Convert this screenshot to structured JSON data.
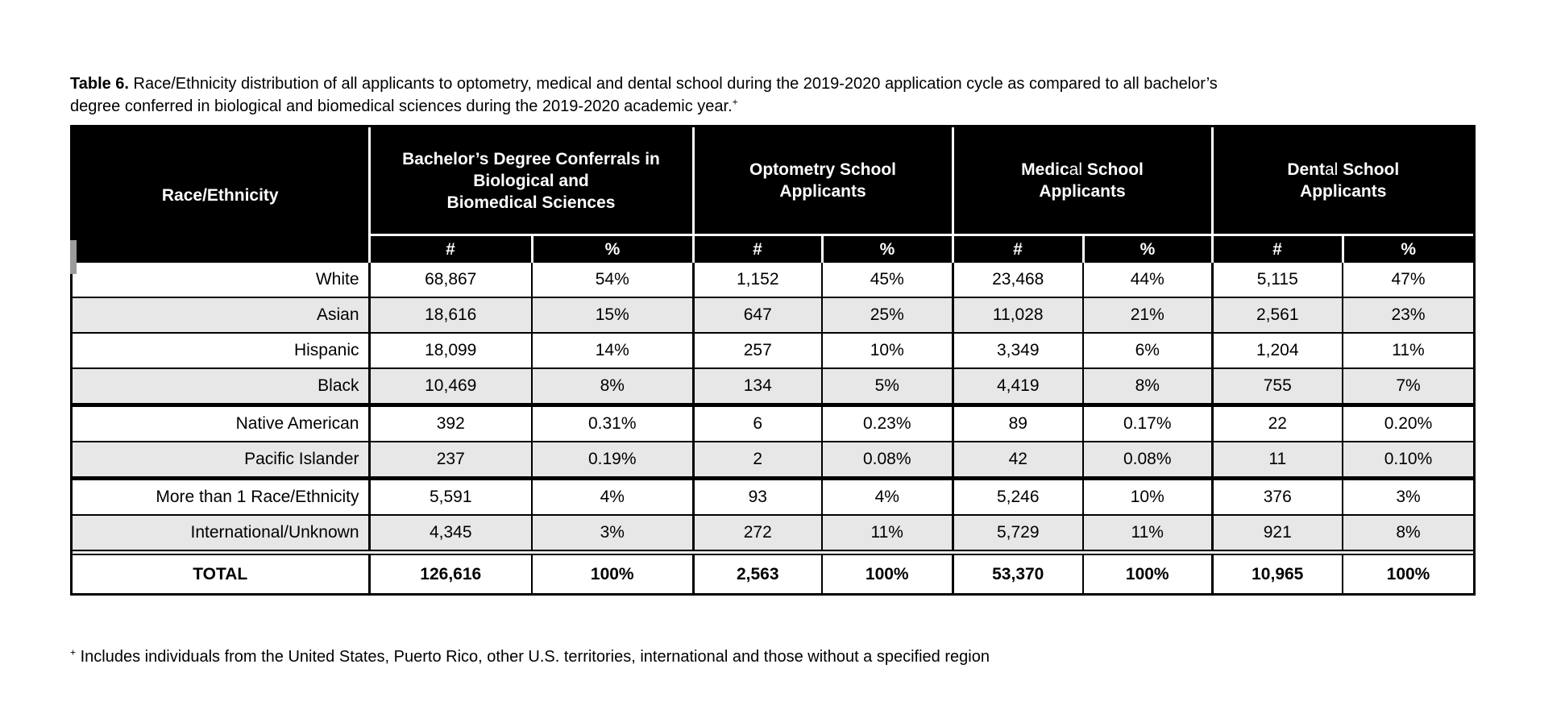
{
  "colors": {
    "header_bg": "#000000",
    "header_text": "#ffffff",
    "row_alt_bg": "#e7e7e7",
    "body_text": "#000000"
  },
  "title": {
    "label_bold": "Table 6.",
    "text": " Race/Ethnicity distribution of all applicants to optometry, medical and dental school during the 2019-2020 application cycle as compared to all bachelor’s degree conferred in biological and biomedical sciences during the 2019-2020 academic year.",
    "superscript": "+"
  },
  "table": {
    "corner_header": "Race/Ethnicity",
    "groups": [
      {
        "line1": "Bachelor’s Degree Conferrals in",
        "line2": "Biological and",
        "line3": "Biomedical Sciences"
      },
      {
        "line1": "Optometry School",
        "line2": "Applicants"
      },
      {
        "seg_bold1": "Medic",
        "seg_regular": "al",
        "seg_bold2": " School",
        "line2": "Applicants"
      },
      {
        "seg_bold1": "Dent",
        "seg_regular": "al",
        "seg_bold2": " School",
        "line2": "Applicants"
      }
    ],
    "subheaders": [
      "#",
      "%"
    ],
    "rows": [
      {
        "label": "White",
        "values": [
          "68,867",
          "54%",
          "1,152",
          "45%",
          "23,468",
          "44%",
          "5,115",
          "47%"
        ]
      },
      {
        "label": "Asian",
        "values": [
          "18,616",
          "15%",
          "647",
          "25%",
          "11,028",
          "21%",
          "2,561",
          "23%"
        ]
      },
      {
        "label": "Hispanic",
        "values": [
          "18,099",
          "14%",
          "257",
          "10%",
          "3,349",
          "6%",
          "1,204",
          "11%"
        ]
      },
      {
        "label": "Black",
        "values": [
          "10,469",
          "8%",
          "134",
          "5%",
          "4,419",
          "8%",
          "755",
          "7%"
        ]
      },
      {
        "label": "Native American",
        "values": [
          "392",
          "0.31%",
          "6",
          "0.23%",
          "89",
          "0.17%",
          "22",
          "0.20%"
        ]
      },
      {
        "label": "Pacific Islander",
        "values": [
          "237",
          "0.19%",
          "2",
          "0.08%",
          "42",
          "0.08%",
          "11",
          "0.10%"
        ]
      },
      {
        "label": "More than 1 Race/Ethnicity",
        "values": [
          "5,591",
          "4%",
          "93",
          "4%",
          "5,246",
          "10%",
          "376",
          "3%"
        ]
      },
      {
        "label": "International/Unknown",
        "values": [
          "4,345",
          "3%",
          "272",
          "11%",
          "5,729",
          "11%",
          "921",
          "8%"
        ]
      }
    ],
    "total_row": {
      "label": "TOTAL",
      "values": [
        "126,616",
        "100%",
        "2,563",
        "100%",
        "53,370",
        "100%",
        "10,965",
        "100%"
      ]
    }
  },
  "footnote": {
    "superscript": "+",
    "text": " Includes individuals from the United States, Puerto Rico, other U.S. territories, international and those without a specified region"
  }
}
